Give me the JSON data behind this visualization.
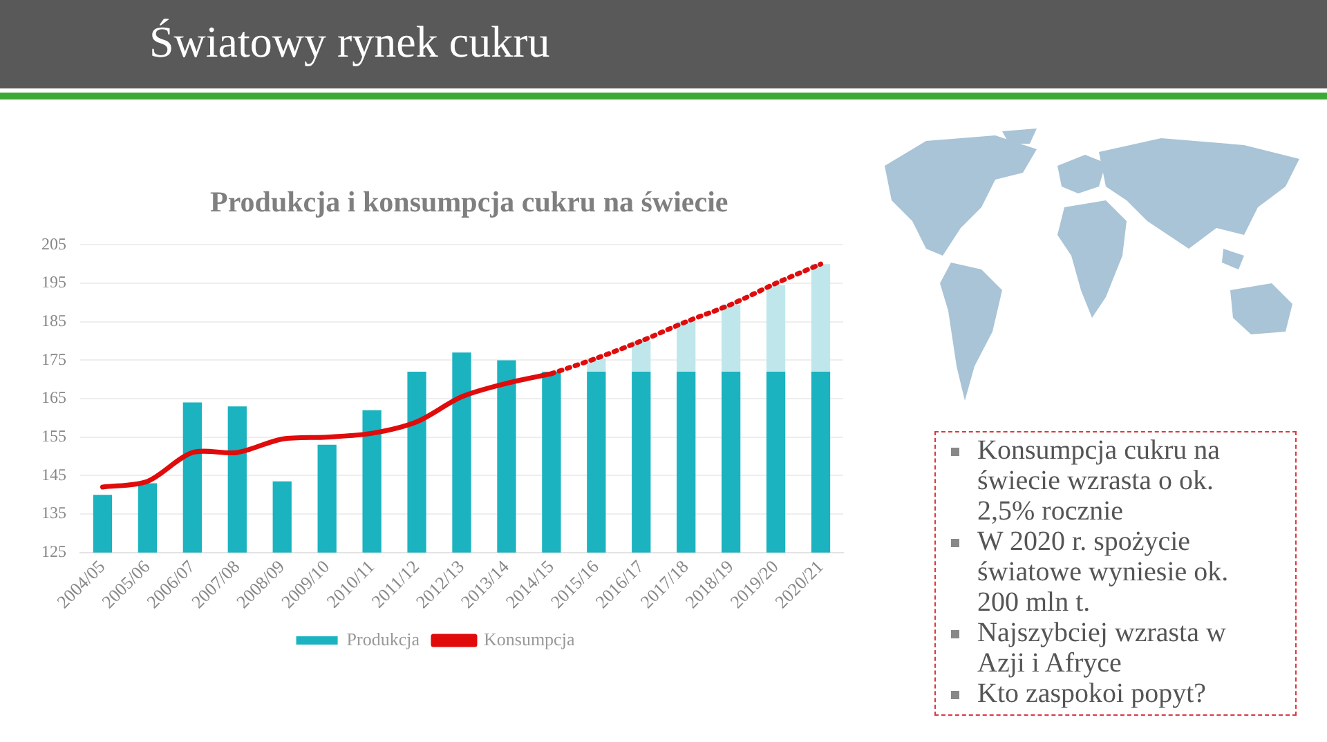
{
  "chart_data": {
    "type": "bar",
    "title": "Produkcja i konsumpcja cukru na świecie",
    "subtitle": "Światowy rynek cukru",
    "categories": [
      "2004/05",
      "2005/06",
      "2006/07",
      "2007/08",
      "2008/09",
      "2009/10",
      "2010/11",
      "2011/12",
      "2012/13",
      "2013/14",
      "2014/15",
      "2015/16",
      "2016/17",
      "2017/18",
      "2018/19",
      "2019/20",
      "2020/21"
    ],
    "series": [
      {
        "name": "Produkcja",
        "color": "#1ab3bf",
        "values": [
          140,
          143,
          164,
          163,
          143.5,
          153,
          162,
          172,
          177,
          175,
          172,
          172,
          172,
          172,
          172,
          172,
          172
        ]
      },
      {
        "color": "#bfe7eb",
        "base": [
          null,
          null,
          null,
          null,
          null,
          null,
          null,
          null,
          null,
          null,
          null,
          172,
          172,
          172,
          172,
          172,
          172
        ],
        "values": [
          null,
          null,
          null,
          null,
          null,
          null,
          null,
          null,
          null,
          null,
          null,
          3.5,
          8,
          13,
          17.5,
          22.5,
          28
        ]
      },
      {
        "name": "Konsumpcja",
        "type": "line",
        "color": "#e00b0b",
        "line_style": "solid",
        "values": [
          142,
          143.5,
          151,
          151,
          154.5,
          155,
          156,
          159,
          165.5,
          169,
          171.5,
          null,
          null,
          null,
          null,
          null,
          null
        ]
      },
      {
        "type": "line",
        "color": "#e00b0b",
        "line_style": "dotted",
        "values": [
          null,
          null,
          null,
          null,
          null,
          null,
          null,
          null,
          null,
          null,
          171.5,
          175.5,
          180,
          185,
          189.5,
          195,
          200
        ]
      }
    ],
    "ylim": [
      125,
      205
    ],
    "yticks": [
      125,
      135,
      145,
      155,
      165,
      175,
      185,
      195,
      205
    ],
    "grid": "y",
    "legend": "bottom",
    "marker": "none",
    "annotations": [
      "Konsumpcja cukru na świecie wzrasta o ok. 2,5% rocznie",
      "W 2020 r. spożycie światowe wyniesie ok. 200 mln t.",
      "Najszybciej wzrasta w Azji i Afryce",
      "Kto zaspokoi popyt?"
    ]
  }
}
